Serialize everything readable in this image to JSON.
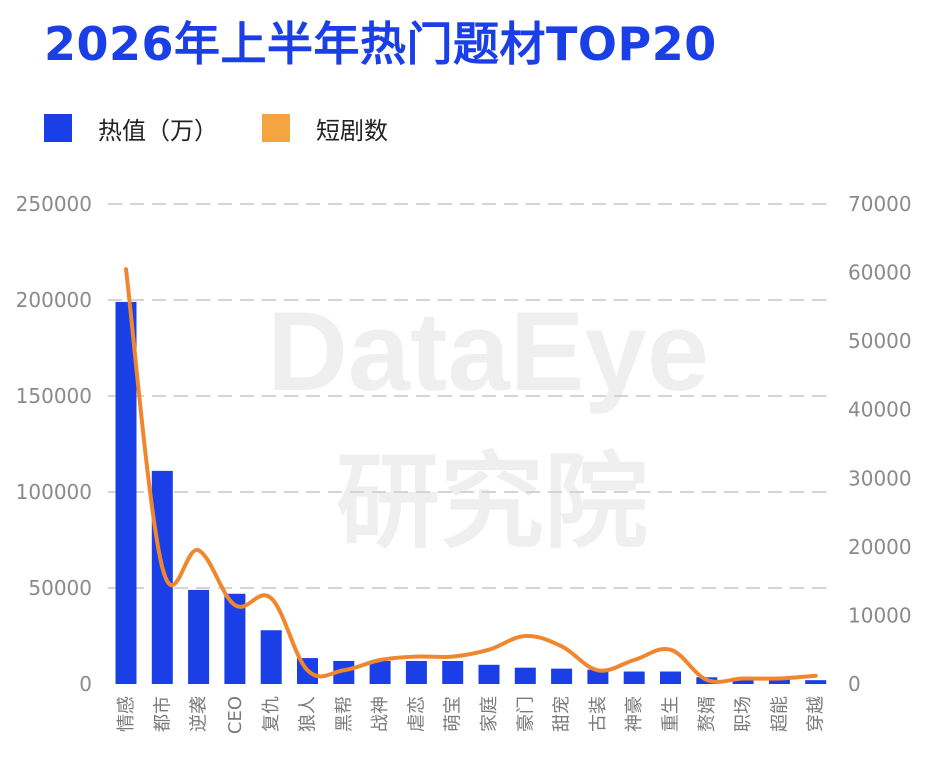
{
  "title": "2026年上半年热门题材TOP20",
  "watermark": {
    "line1": "DataEye",
    "line2": "研究院"
  },
  "colors": {
    "bar": "#1b3fe6",
    "line": "#f0872f",
    "legend_line": "#f5a442",
    "title": "#1b3fe6",
    "grid": "#d4d4d4",
    "tick": "#8a8a8a"
  },
  "legend": [
    {
      "label": "热值（万）",
      "color": "#1b3fe6"
    },
    {
      "label": "短剧数",
      "color": "#f5a442"
    }
  ],
  "chart_data": {
    "type": "bar",
    "title": "2026年上半年热门题材TOP20",
    "categories": [
      "情感",
      "都市",
      "逆袭",
      "CEO",
      "复仇",
      "狼人",
      "黑帮",
      "战神",
      "虐恋",
      "萌宝",
      "家庭",
      "豪门",
      "甜宠",
      "古装",
      "神豪",
      "重生",
      "赘婿",
      "职场",
      "超能",
      "穿越"
    ],
    "series": [
      {
        "name": "热值（万）",
        "type": "bar",
        "axis": "left",
        "values": [
          199000,
          111000,
          49000,
          47000,
          28000,
          13500,
          12000,
          12000,
          12000,
          12000,
          10000,
          8500,
          8000,
          7500,
          6500,
          6500,
          3500,
          3000,
          3000,
          2000
        ]
      },
      {
        "name": "短剧数",
        "type": "line",
        "axis": "right",
        "values": [
          60500,
          17000,
          19500,
          11500,
          12500,
          2000,
          2000,
          3500,
          4000,
          4000,
          5000,
          7000,
          5500,
          2000,
          3500,
          5000,
          600,
          800,
          800,
          1200
        ]
      }
    ],
    "y_left": {
      "min": 0,
      "max": 250000,
      "ticks": [
        "0",
        "50000",
        "100000",
        "150000",
        "200000",
        "250000"
      ]
    },
    "y_right": {
      "min": 0,
      "max": 70000,
      "ticks": [
        "0",
        "10000",
        "20000",
        "30000",
        "40000",
        "50000",
        "60000",
        "70000"
      ]
    },
    "grid": "dashed horizontal",
    "legend_position": "top-left"
  }
}
